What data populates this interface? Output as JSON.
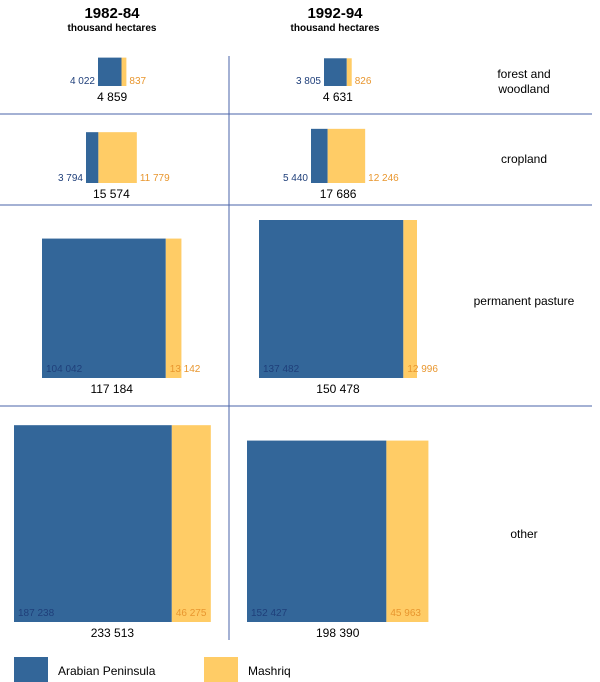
{
  "chart_data": {
    "type": "area",
    "columns": [
      {
        "title": "1982-84",
        "subtitle": "thousand hectares"
      },
      {
        "title": "1992-94",
        "subtitle": "thousand hectares"
      }
    ],
    "series": [
      {
        "name": "Arabian Peninsula",
        "color": "#336699"
      },
      {
        "name": "Mashriq",
        "color": "#FFCC66"
      }
    ],
    "rows": [
      {
        "label": "forest and woodland",
        "cells": [
          {
            "arabian": 4022,
            "mashriq": 837,
            "arabian_label": "4 022",
            "mashriq_label": "837",
            "total_label": "4 859"
          },
          {
            "arabian": 3805,
            "mashriq": 826,
            "arabian_label": "3 805",
            "mashriq_label": "826",
            "total_label": "4 631"
          }
        ]
      },
      {
        "label": "cropland",
        "cells": [
          {
            "arabian": 3794,
            "mashriq": 11779,
            "arabian_label": "3 794",
            "mashriq_label": "11 779",
            "total_label": "15 574"
          },
          {
            "arabian": 5440,
            "mashriq": 12246,
            "arabian_label": "5 440",
            "mashriq_label": "12 246",
            "total_label": "17 686"
          }
        ]
      },
      {
        "label": "permanent pasture",
        "cells": [
          {
            "arabian": 104042,
            "mashriq": 13142,
            "arabian_label": "104 042",
            "mashriq_label": "13 142",
            "total_label": "117 184"
          },
          {
            "arabian": 137482,
            "mashriq": 12996,
            "arabian_label": "137 482",
            "mashriq_label": "12 996",
            "total_label": "150 478"
          }
        ]
      },
      {
        "label": "other",
        "cells": [
          {
            "arabian": 187238,
            "mashriq": 46275,
            "arabian_label": "187 238",
            "mashriq_label": "46 275",
            "total_label": "233 513"
          },
          {
            "arabian": 152427,
            "mashriq": 45963,
            "arabian_label": "152 427",
            "mashriq_label": "45 963",
            "total_label": "198 390"
          }
        ]
      }
    ],
    "legend": [
      "Arabian Peninsula",
      "Mashriq"
    ]
  }
}
